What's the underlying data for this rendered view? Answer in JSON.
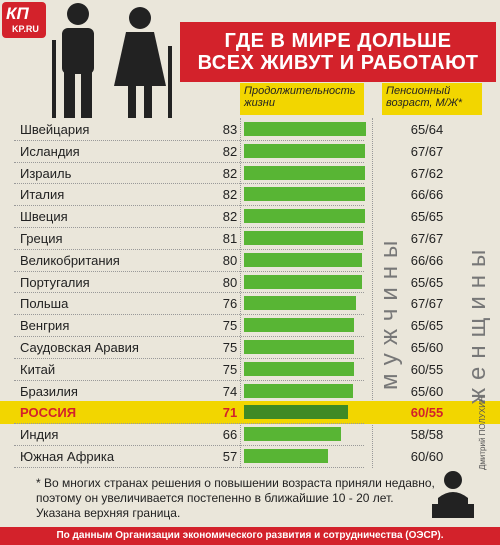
{
  "logo": {
    "kp": "КП",
    "ru": "KP.RU"
  },
  "title": {
    "line1": "ГДЕ В МИРЕ ДОЛЬШЕ",
    "line2": "ВСЕХ ЖИВУТ И РАБОТАЮТ"
  },
  "headers": {
    "life": "Продолжительность жизни",
    "pension": "Пенсионный возраст, М/Ж*"
  },
  "vertical_labels": {
    "men": "мужчины",
    "women": "женщины"
  },
  "chart_data": {
    "type": "bar",
    "categories": [
      "Швейцария",
      "Исландия",
      "Израиль",
      "Италия",
      "Швеция",
      "Греция",
      "Великобритания",
      "Португалия",
      "Польша",
      "Венгрия",
      "Саудовская Аравия",
      "Китай",
      "Бразилия",
      "РОССИЯ",
      "Индия",
      "Южная Африка"
    ],
    "values": [
      83,
      82,
      82,
      82,
      82,
      81,
      80,
      80,
      76,
      75,
      75,
      75,
      74,
      71,
      66,
      57
    ],
    "pension": [
      "65/64",
      "67/67",
      "67/62",
      "66/66",
      "65/65",
      "67/67",
      "66/66",
      "65/65",
      "67/67",
      "65/65",
      "65/60",
      "60/55",
      "65/60",
      "60/55",
      "58/58",
      "60/60"
    ],
    "highlight": "РОССИЯ",
    "bar_color": "#58b534",
    "highlight_bar_color": "#3f8a25",
    "highlight_row_color": "#f2d600"
  },
  "footnote": {
    "line1": "* Во многих странах решения о повышении возраста приняли недавно,",
    "line2": "поэтому он увеличивается постепенно в ближайшие 10 - 20 лет.",
    "line3": "Указана верхняя граница."
  },
  "author": "Дмитрий ПОЛУХИН",
  "source": "По данным Организации экономического развития и сотрудничества (ОЭСР)."
}
